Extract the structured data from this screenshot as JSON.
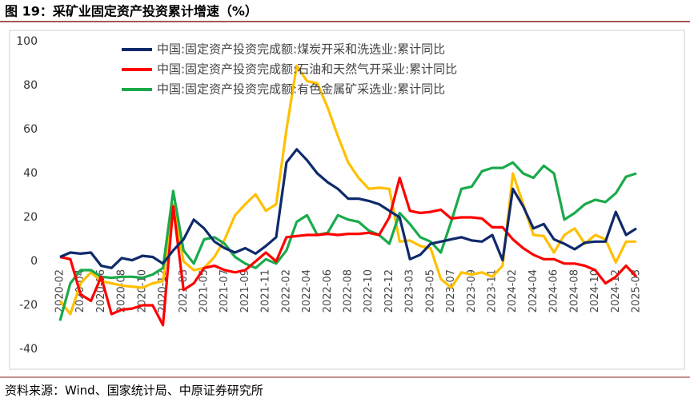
{
  "chart_data": {
    "type": "line",
    "title": "图 19：采矿业固定资产投资累计增速（%）",
    "source": "资料来源：Wind、国家统计局、中原证券研究所",
    "categories": [
      "2020-02",
      null,
      "2020-04",
      null,
      "2020-06",
      null,
      "2020-08",
      null,
      "2020-10",
      null,
      "2020-12",
      null,
      "2021-03",
      null,
      "2021-05",
      null,
      "2021-07",
      null,
      "2021-09",
      null,
      "2021-11",
      null,
      "2022-02",
      null,
      "2022-04",
      null,
      "2022-06",
      null,
      "2022-08",
      null,
      "2022-10",
      null,
      "2022-12",
      null,
      "2023-03",
      null,
      "2023-05",
      null,
      "2023-07",
      null,
      "2023-09",
      null,
      "2023-11",
      null,
      "2024-02",
      null,
      "2024-04",
      null,
      "2024-06",
      null,
      "2024-08",
      null,
      "2024-10",
      null,
      "2024-12",
      null,
      "2025-03"
    ],
    "series": [
      {
        "name": "中国:固定资产投资完成额:煤炭开采和洗选业:累计同比",
        "color": "#0f2a6b",
        "values": [
          2,
          4,
          3.5,
          4,
          -2,
          -3,
          1.5,
          0.5,
          2.5,
          2,
          -1,
          5,
          10,
          19,
          15,
          9,
          6,
          4,
          6,
          3.5,
          7,
          11,
          45,
          51,
          46,
          40,
          36,
          33,
          28.5,
          28.5,
          27.5,
          26,
          23,
          20,
          1,
          3,
          8,
          9,
          10,
          11,
          9.5,
          9,
          12,
          0.5,
          33,
          25,
          15,
          17,
          10,
          8,
          5.5,
          8.5,
          9,
          9,
          22.5,
          12,
          15
        ]
      },
      {
        "name": "中国:固定资产投资完成额:石油和天然气开采业:累计同比",
        "color": "#ff0000",
        "values": [
          2,
          1,
          -15,
          -18,
          -7,
          -24,
          -22,
          -21.5,
          -20,
          -20,
          -29,
          25,
          -13,
          -10,
          -3,
          -2,
          -4,
          -5,
          -4,
          0,
          4,
          0,
          11,
          11.5,
          12,
          12,
          12.5,
          12,
          12.5,
          12.5,
          13,
          12,
          20,
          38,
          23,
          22,
          22.5,
          23.5,
          19.5,
          20,
          20,
          19.5,
          15.5,
          15.5,
          10,
          6,
          3,
          1,
          1,
          -1,
          -1,
          -2,
          -4,
          -10,
          -7,
          -2,
          -7
        ]
      },
      {
        "name": "中国:固定资产投资完成额:有色金属矿采选业:累计同比",
        "color": "#1aaa4b",
        "values": [
          -27,
          -10,
          -4,
          -4,
          -7,
          -7.5,
          -7,
          -7,
          -7.5,
          -6,
          -3,
          32,
          5,
          -1,
          10,
          11,
          8,
          2,
          -1,
          -3,
          1,
          -1,
          5,
          18,
          21,
          12,
          13,
          21,
          19,
          18,
          14,
          12,
          8,
          22,
          17,
          11,
          9,
          4,
          18,
          33,
          34,
          41,
          42.5,
          42.5,
          45,
          40,
          38,
          43.5,
          40,
          19,
          22,
          26,
          28,
          27,
          31,
          38.5,
          40
        ]
      },
      {
        "color": "#ffc000",
        "values": [
          -18,
          -24,
          -10,
          -5,
          -9,
          -10,
          -11,
          -11.5,
          -12,
          -10,
          -9,
          26,
          0,
          -4,
          -3,
          2,
          10,
          21,
          26,
          30.5,
          23,
          26,
          60,
          89,
          82,
          81,
          70,
          57,
          45,
          38,
          33,
          33.5,
          33,
          9,
          9.5,
          7,
          6,
          -8,
          -12,
          -5,
          -6,
          -5,
          -7,
          -2,
          40,
          26,
          12,
          11.5,
          4,
          12,
          15,
          8,
          12,
          10,
          -0.5,
          9,
          9
        ]
      }
    ],
    "ylim": [
      -40,
      100
    ],
    "yticks": [
      -40,
      -20,
      0,
      20,
      40,
      60,
      80,
      100
    ],
    "grid": false
  }
}
